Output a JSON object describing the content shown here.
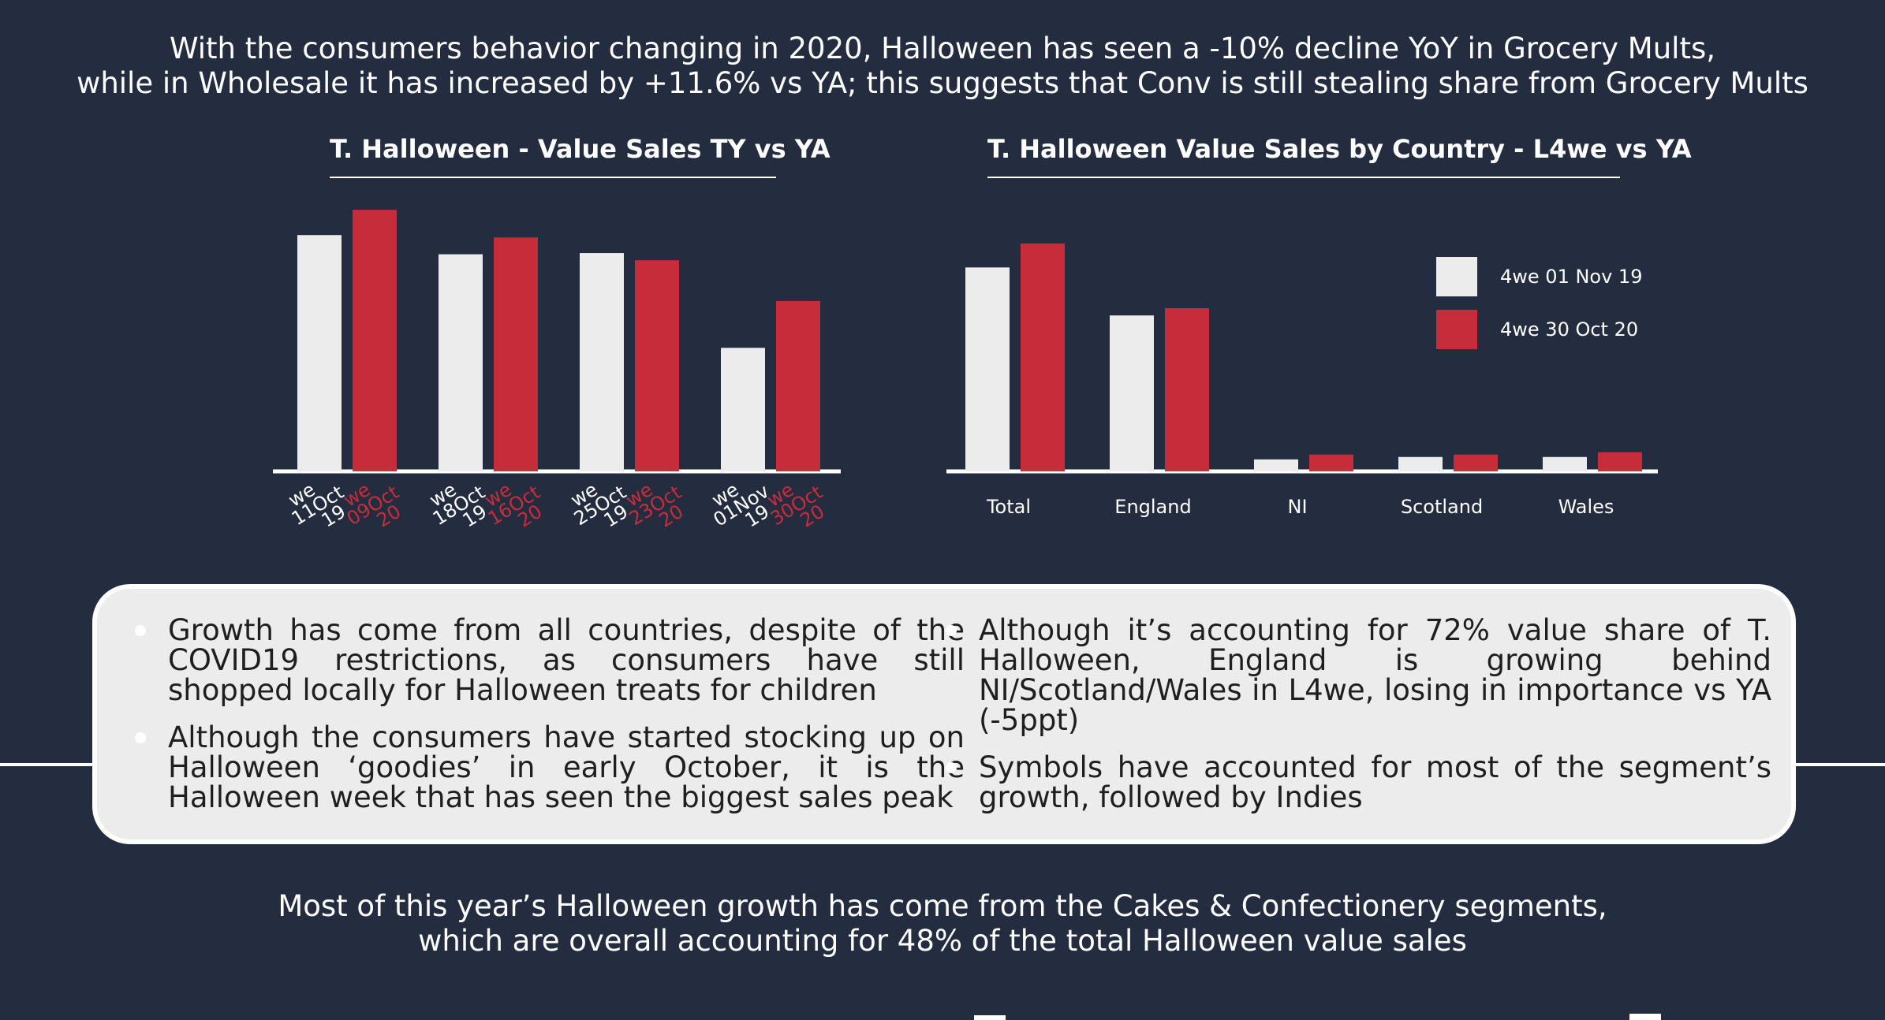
{
  "headline_top": [
    "With the consumers behavior changing in 2020, Halloween has seen a -10%  decline YoY in Grocery Mults,",
    "while in Wholesale it has increased by +11.6% vs YA; this suggests that Conv is still stealing share from Grocery Mults"
  ],
  "colors": {
    "background": "#232d3f",
    "ya": "#ececec",
    "ty": "#c72c3b",
    "panel": "#ececec"
  },
  "chart_data": [
    {
      "type": "bar",
      "title": "T. Halloween - Value Sales TY vs YA",
      "categories": [
        {
          "ya_label": [
            "we",
            "11Oct",
            "19"
          ],
          "ty_label": [
            "we",
            "09Oct",
            "20"
          ]
        },
        {
          "ya_label": [
            "we",
            "18Oct",
            "19"
          ],
          "ty_label": [
            "we",
            "16Oct",
            "20"
          ]
        },
        {
          "ya_label": [
            "we",
            "25Oct",
            "19"
          ],
          "ty_label": [
            "we",
            "23Oct",
            "20"
          ]
        },
        {
          "ya_label": [
            "we",
            "01Nov",
            "19"
          ],
          "ty_label": [
            "we",
            "30Oct",
            "20"
          ]
        }
      ],
      "series": [
        {
          "values": [
            197,
            181,
            182,
            103
          ]
        },
        {
          "values": [
            218,
            195,
            176,
            142
          ]
        }
      ],
      "ylim": [
        0,
        230
      ],
      "grid": false
    },
    {
      "type": "bar",
      "title": "T. Halloween  Value Sales by Country - L4we vs YA",
      "categories": [
        "Total",
        "England",
        "NI",
        "Scotland",
        "Wales"
      ],
      "series": [
        {
          "name": "4we 01 Nov 19",
          "values": [
            170,
            130,
            10,
            12,
            12
          ]
        },
        {
          "name": "4we 30 Oct 20",
          "values": [
            190,
            136,
            14,
            14,
            16
          ]
        }
      ],
      "ylim": [
        0,
        230
      ],
      "legend": "right",
      "grid": false
    }
  ],
  "insights": {
    "left": [
      "Growth has come from all countries, despite of the COVID19 restrictions, as consumers have still shopped locally for Halloween treats for children",
      "Although the consumers have started stocking up on Halloween ‘goodies’ in early October, it is the Halloween week that has seen the biggest sales peak"
    ],
    "right": [
      "Although it’s accounting for 72% value share of T. Halloween, England is growing behind NI/Scotland/Wales in L4we, losing in importance vs YA (-5ppt)",
      "Symbols have accounted for most of the segment’s growth, followed by Indies"
    ]
  },
  "headline_bottom": [
    "Most of this year’s Halloween growth has come from the Cakes & Confectionery segments,",
    "which are overall accounting for 48% of the total Halloween value sales"
  ]
}
